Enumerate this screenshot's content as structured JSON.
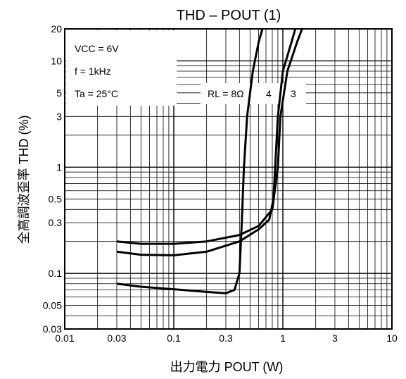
{
  "chart_data": {
    "type": "line",
    "title": "THD  –  POUT (1)",
    "xlabel": "出力電力    POUT    (W)",
    "ylabel": "全高調波歪率    THD    (%)",
    "x_scale": "log",
    "y_scale": "log",
    "xlim": [
      0.01,
      10
    ],
    "ylim": [
      0.03,
      20
    ],
    "x_ticks": [
      {
        "value": 0.01,
        "label": "0.01"
      },
      {
        "value": 0.03,
        "label": "0.03"
      },
      {
        "value": 0.1,
        "label": "0.1"
      },
      {
        "value": 0.3,
        "label": "0.3"
      },
      {
        "value": 1,
        "label": "1"
      },
      {
        "value": 3,
        "label": "3"
      },
      {
        "value": 10,
        "label": "10"
      }
    ],
    "y_ticks": [
      {
        "value": 0.03,
        "label": "0.03"
      },
      {
        "value": 0.05,
        "label": "0.05"
      },
      {
        "value": 0.1,
        "label": "0.1"
      },
      {
        "value": 0.3,
        "label": "0.3"
      },
      {
        "value": 0.5,
        "label": "0.5"
      },
      {
        "value": 1,
        "label": "1"
      },
      {
        "value": 3,
        "label": "3"
      },
      {
        "value": 5,
        "label": "5"
      },
      {
        "value": 10,
        "label": "10"
      },
      {
        "value": 20,
        "label": "20"
      }
    ],
    "grid": true,
    "conditions": [
      "VCC = 6V",
      "f = 1kHz",
      "Ta = 25°C"
    ],
    "curve_labels": [
      "RL = 8Ω",
      "4",
      "3"
    ],
    "series": [
      {
        "name": "8Ω",
        "points": [
          [
            0.03,
            0.08
          ],
          [
            0.05,
            0.075
          ],
          [
            0.1,
            0.071
          ],
          [
            0.2,
            0.067
          ],
          [
            0.3,
            0.065
          ],
          [
            0.36,
            0.07
          ],
          [
            0.4,
            0.1
          ],
          [
            0.42,
            0.3
          ],
          [
            0.44,
            1
          ],
          [
            0.47,
            3
          ],
          [
            0.53,
            8
          ],
          [
            0.6,
            15
          ],
          [
            0.65,
            20
          ]
        ]
      },
      {
        "name": "4Ω",
        "points": [
          [
            0.03,
            0.16
          ],
          [
            0.05,
            0.15
          ],
          [
            0.1,
            0.148
          ],
          [
            0.2,
            0.16
          ],
          [
            0.4,
            0.2
          ],
          [
            0.6,
            0.26
          ],
          [
            0.75,
            0.32
          ],
          [
            0.82,
            0.5
          ],
          [
            0.85,
            1
          ],
          [
            0.9,
            3
          ],
          [
            1,
            8
          ],
          [
            1.2,
            15
          ],
          [
            1.3,
            20
          ]
        ]
      },
      {
        "name": "3Ω",
        "points": [
          [
            0.03,
            0.2
          ],
          [
            0.05,
            0.19
          ],
          [
            0.1,
            0.19
          ],
          [
            0.2,
            0.2
          ],
          [
            0.4,
            0.23
          ],
          [
            0.6,
            0.28
          ],
          [
            0.8,
            0.4
          ],
          [
            0.9,
            1
          ],
          [
            0.95,
            3
          ],
          [
            1.1,
            8
          ],
          [
            1.35,
            15
          ],
          [
            1.5,
            20
          ]
        ]
      }
    ]
  }
}
